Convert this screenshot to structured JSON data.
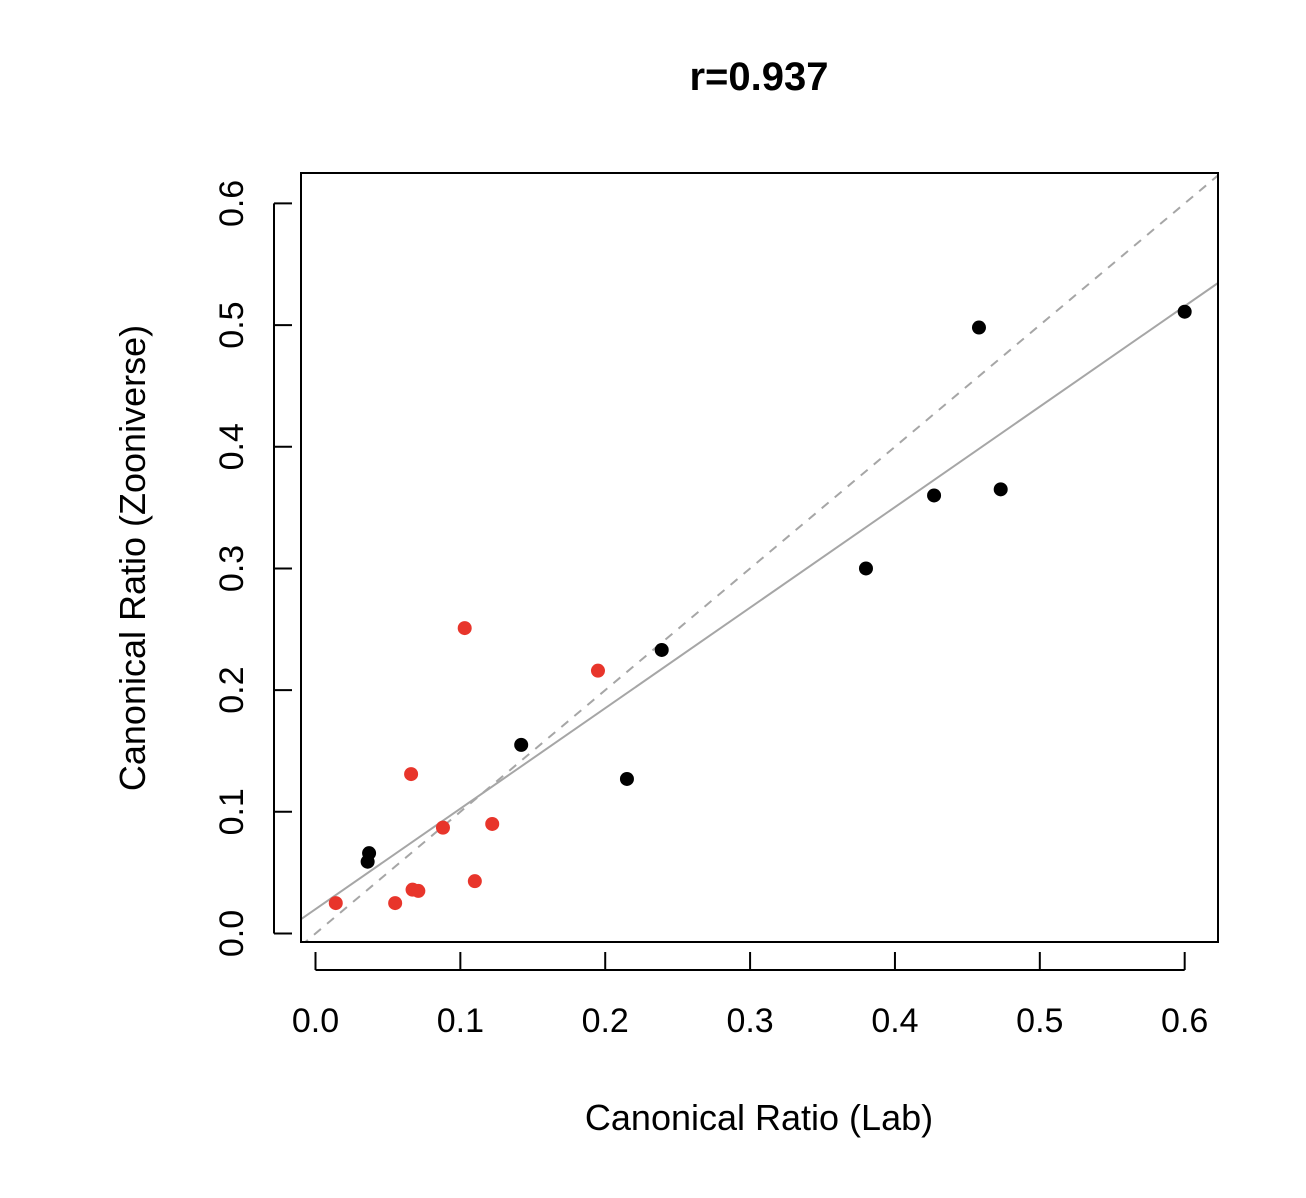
{
  "chart_data": {
    "type": "scatter",
    "title": "r=0.937",
    "xlabel": "Canonical Ratio (Lab)",
    "ylabel": "Canonical Ratio (Zooniverse)",
    "xlim": [
      -0.01,
      0.623
    ],
    "ylim": [
      -0.007,
      0.625
    ],
    "xticks": [
      "0.0",
      "0.1",
      "0.2",
      "0.3",
      "0.4",
      "0.5",
      "0.6"
    ],
    "yticks": [
      "0.0",
      "0.1",
      "0.2",
      "0.3",
      "0.4",
      "0.5",
      "0.6"
    ],
    "grid": false,
    "colors": {
      "black_series": "#000000",
      "red_series": "#e8352b",
      "fit_line": "#a6a6a6",
      "identity_line": "#a6a6a6"
    },
    "series": [
      {
        "color": "black",
        "points": [
          {
            "x": 0.036,
            "y": 0.059
          },
          {
            "x": 0.037,
            "y": 0.066
          },
          {
            "x": 0.142,
            "y": 0.155
          },
          {
            "x": 0.215,
            "y": 0.127
          },
          {
            "x": 0.239,
            "y": 0.233
          },
          {
            "x": 0.38,
            "y": 0.3
          },
          {
            "x": 0.427,
            "y": 0.36
          },
          {
            "x": 0.458,
            "y": 0.498
          },
          {
            "x": 0.473,
            "y": 0.365
          },
          {
            "x": 0.6,
            "y": 0.511
          }
        ]
      },
      {
        "color": "red",
        "points": [
          {
            "x": 0.014,
            "y": 0.025
          },
          {
            "x": 0.055,
            "y": 0.025
          },
          {
            "x": 0.066,
            "y": 0.131
          },
          {
            "x": 0.067,
            "y": 0.036
          },
          {
            "x": 0.071,
            "y": 0.035
          },
          {
            "x": 0.088,
            "y": 0.087
          },
          {
            "x": 0.103,
            "y": 0.251
          },
          {
            "x": 0.11,
            "y": 0.043
          },
          {
            "x": 0.122,
            "y": 0.09
          },
          {
            "x": 0.195,
            "y": 0.216
          }
        ]
      }
    ],
    "lines": [
      {
        "kind": "fit",
        "style": "solid",
        "intercept": 0.02,
        "slope": 0.826
      },
      {
        "kind": "identity",
        "style": "dashed",
        "intercept": 0,
        "slope": 1
      }
    ]
  }
}
